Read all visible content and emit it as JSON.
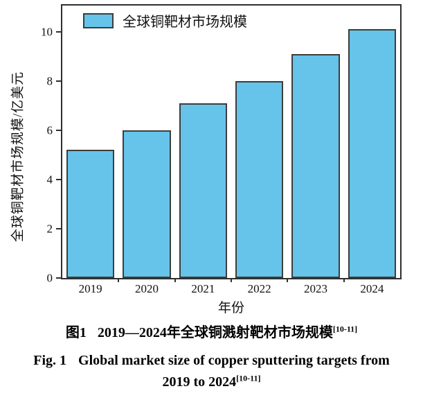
{
  "figure": {
    "legend": {
      "label": "全球铜靶材市场规模"
    },
    "captions": {
      "zh_label": "图1",
      "zh_text": "2019—2024年全球铜溅射靶材市场规模",
      "zh_ref": "[10-11]",
      "en_label": "Fig. 1",
      "en_text": "Global market size of copper sputtering targets from",
      "en_line2": "2019 to 2024",
      "en_ref": "[10-11]"
    }
  },
  "chart_data": {
    "type": "bar",
    "title": "",
    "categories": [
      "2019",
      "2020",
      "2021",
      "2022",
      "2023",
      "2024"
    ],
    "values": [
      5.2,
      6.0,
      7.1,
      8.0,
      9.1,
      10.1
    ],
    "series_name": "全球铜靶材市场规模",
    "xlabel": "年份",
    "ylabel": "全球铜靶材市场规模/亿美元",
    "ylim": [
      0,
      10
    ],
    "yticks": [
      0,
      2,
      4,
      6,
      8,
      10
    ],
    "grid": false,
    "legend_position": "upper-left-inside",
    "colors": {
      "bar_fill": "#66c3ea",
      "bar_border": "#3c3c3c",
      "axis": "#2e2e2e",
      "text": "#111111"
    }
  }
}
